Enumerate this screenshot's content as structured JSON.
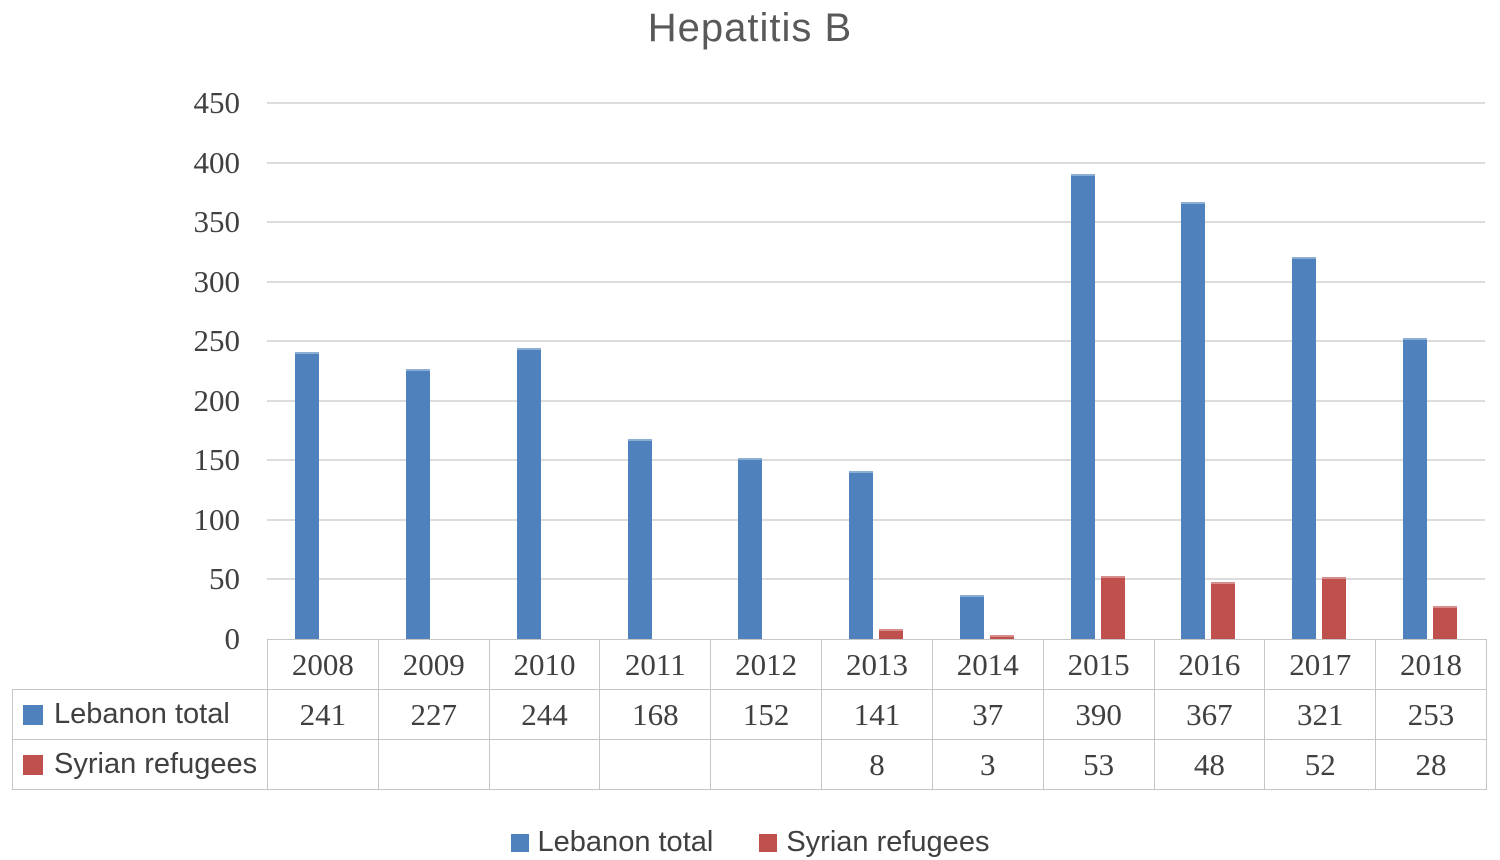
{
  "chart_data": {
    "type": "bar",
    "title": "Hepatitis B",
    "categories": [
      "2008",
      "2009",
      "2010",
      "2011",
      "2012",
      "2013",
      "2014",
      "2015",
      "2016",
      "2017",
      "2018"
    ],
    "series": [
      {
        "name": "Lebanon total",
        "color": "#4F81BD",
        "values": [
          241,
          227,
          244,
          168,
          152,
          141,
          37,
          390,
          367,
          321,
          253
        ]
      },
      {
        "name": "Syrian refugees",
        "color": "#C0504D",
        "values": [
          null,
          null,
          null,
          null,
          null,
          8,
          3,
          53,
          48,
          52,
          28
        ]
      }
    ],
    "ylim": [
      0,
      450
    ],
    "yticks": [
      0,
      50,
      100,
      150,
      200,
      250,
      300,
      350,
      400,
      450
    ],
    "xlabel": "",
    "ylabel": "",
    "grid": true,
    "gridline_color": "#dcdcdc",
    "table_border_color": "#c6c6c6",
    "text_color": "#404040",
    "title_color": "#595959",
    "legend_position": "bottom",
    "data_table_shown": true
  },
  "legend": {
    "items": [
      {
        "label": "Lebanon total",
        "swatch": "blue-square-icon"
      },
      {
        "label": "Syrian refugees",
        "swatch": "red-square-icon"
      }
    ]
  }
}
